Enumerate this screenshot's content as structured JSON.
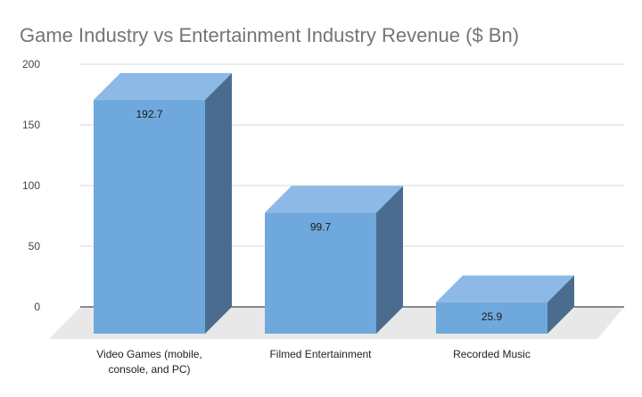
{
  "chart_data": {
    "type": "bar",
    "style": "3d",
    "title": "Game Industry vs Entertainment Industry Revenue ($ Bn)",
    "categories": [
      [
        "Video Games (mobile,",
        "console, and PC)"
      ],
      [
        "Filmed Entertainment"
      ],
      [
        "Recorded Music"
      ]
    ],
    "values": [
      192.7,
      99.7,
      25.9
    ],
    "data_labels": [
      "192.7",
      "99.7",
      "25.9"
    ],
    "yticks": [
      "0",
      "50",
      "100",
      "150",
      "200"
    ],
    "ylim": [
      0,
      200
    ],
    "grid": true,
    "colors": {
      "front": "#6fa8dc",
      "top": "#8cb9e6",
      "side": "#4a6d8f",
      "floor": "#e8e8e8",
      "grid": "#d9d9d9"
    }
  }
}
